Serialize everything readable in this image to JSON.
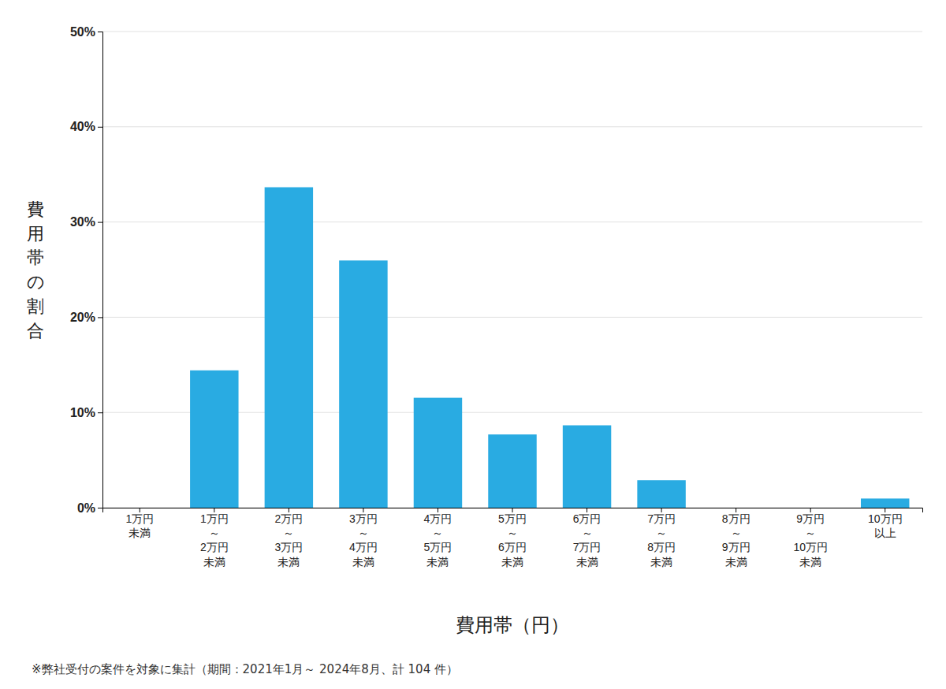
{
  "chart_data": {
    "type": "bar",
    "categories": [
      "1万円\n未満",
      "1万円\n～\n2万円\n未満",
      "2万円\n～\n3万円\n未満",
      "3万円\n～\n4万円\n未満",
      "4万円\n～\n5万円\n未満",
      "5万円\n～\n6万円\n未満",
      "6万円\n～\n7万円\n未満",
      "7万円\n～\n8万円\n未満",
      "8万円\n～\n9万円\n未満",
      "9万円\n～\n10万円\n未満",
      "10万円\n以上"
    ],
    "values": [
      0.0,
      14.42,
      33.65,
      25.96,
      11.54,
      7.69,
      8.65,
      2.88,
      0.0,
      0.0,
      0.96
    ],
    "color": "#29ABE2",
    "ylabel": "費用帯の割合",
    "xlabel": "費用帯（円）",
    "annotations": [
      "※弊社受付の案件を対象に集計（期間：2021年1月～ 2024年8月、計 104 件）"
    ],
    "ylim": [
      0,
      50
    ],
    "yticks": [
      {
        "value": 0,
        "label": "0%"
      },
      {
        "value": 10,
        "label": "10%"
      },
      {
        "value": 20,
        "label": "20%"
      },
      {
        "value": 30,
        "label": "30%"
      },
      {
        "value": 40,
        "label": "40%"
      },
      {
        "value": 50,
        "label": "50%"
      }
    ],
    "grid": true
  }
}
